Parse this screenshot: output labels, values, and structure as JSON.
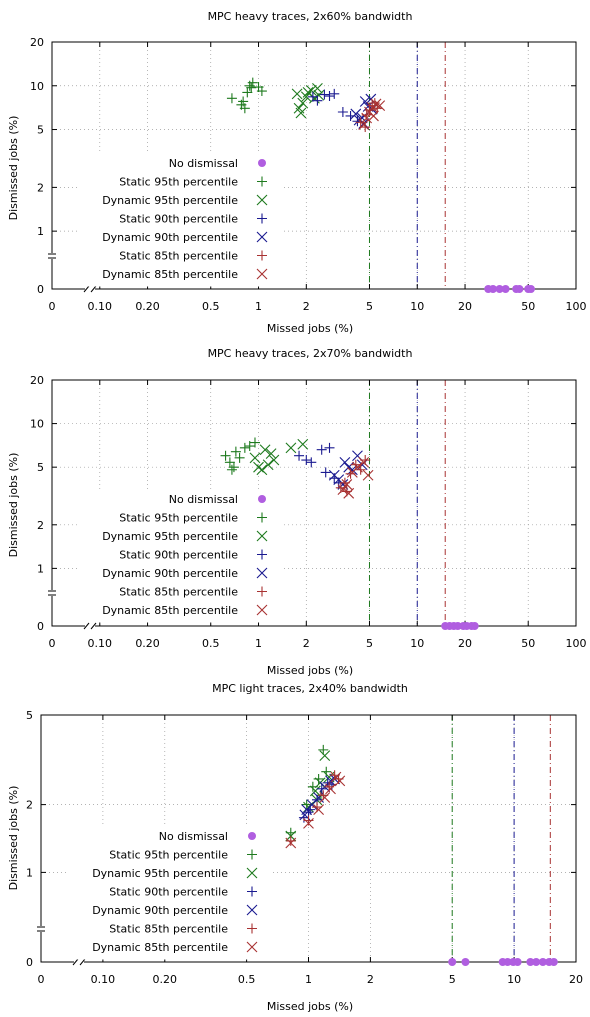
{
  "colors": {
    "no_dismissal": "#b05ee0",
    "p95": "#1e7a1e",
    "p90": "#1a1a90",
    "p85": "#a83232",
    "axis": "#000000",
    "grid": "#9a9a9a"
  },
  "chart_data": [
    {
      "type": "scatter",
      "title": "MPC heavy traces, 2x60% bandwidth",
      "xlabel": "Missed jobs (%)",
      "ylabel": "Dismissed jobs (%)",
      "xscale": "log",
      "yscale": "log",
      "xlim": [
        0.05,
        100
      ],
      "ylim": [
        0.4,
        20
      ],
      "xticks": [
        {
          "v": 0.05,
          "label": "0"
        },
        {
          "v": 0.1,
          "label": "0.10"
        },
        {
          "v": 0.2,
          "label": "0.20"
        },
        {
          "v": 0.5,
          "label": "0.5"
        },
        {
          "v": 1,
          "label": "1"
        },
        {
          "v": 2,
          "label": "2"
        },
        {
          "v": 5,
          "label": "5"
        },
        {
          "v": 10,
          "label": "10"
        },
        {
          "v": 20,
          "label": "20"
        },
        {
          "v": 50,
          "label": "50"
        },
        {
          "v": 100,
          "label": "100"
        }
      ],
      "yticks": [
        {
          "v": 0.4,
          "label": "0"
        },
        {
          "v": 1,
          "label": "1"
        },
        {
          "v": 2,
          "label": "2"
        },
        {
          "v": 5,
          "label": "5"
        },
        {
          "v": 10,
          "label": "10"
        },
        {
          "v": 20,
          "label": "20"
        }
      ],
      "grid": true,
      "legend_position": "left-middle",
      "vlines": [
        {
          "x": 5,
          "color": "p95"
        },
        {
          "x": 10,
          "color": "p90"
        },
        {
          "x": 15,
          "color": "p85"
        }
      ],
      "series": [
        {
          "name": "No dismissal",
          "marker": "circle",
          "color": "no_dismissal",
          "points": [
            [
              28,
              0.4
            ],
            [
              30,
              0.4
            ],
            [
              33,
              0.4
            ],
            [
              36,
              0.4
            ],
            [
              42,
              0.4
            ],
            [
              44,
              0.4
            ],
            [
              50,
              0.4
            ],
            [
              52,
              0.4
            ]
          ]
        },
        {
          "name": "Static 95th percentile",
          "marker": "plus",
          "color": "p95",
          "points": [
            [
              0.68,
              8.2
            ],
            [
              0.78,
              7.4
            ],
            [
              0.8,
              7.8
            ],
            [
              0.82,
              7.0
            ],
            [
              0.85,
              9.0
            ],
            [
              0.88,
              10.0
            ],
            [
              0.9,
              9.7
            ],
            [
              0.92,
              10.5
            ],
            [
              1.0,
              9.8
            ],
            [
              1.05,
              9.2
            ]
          ]
        },
        {
          "name": "Dynamic 95th percentile",
          "marker": "x",
          "color": "p95",
          "points": [
            [
              1.75,
              8.8
            ],
            [
              1.8,
              7.0
            ],
            [
              1.85,
              6.5
            ],
            [
              1.9,
              7.6
            ],
            [
              2.0,
              8.4
            ],
            [
              2.05,
              9.0
            ],
            [
              2.15,
              9.3
            ],
            [
              2.25,
              8.2
            ],
            [
              2.35,
              9.6
            ],
            [
              2.4,
              8.6
            ]
          ]
        },
        {
          "name": "Static 90th percentile",
          "marker": "plus",
          "color": "p90",
          "points": [
            [
              2.2,
              8.4
            ],
            [
              2.35,
              7.9
            ],
            [
              2.6,
              8.7
            ],
            [
              2.8,
              8.5
            ],
            [
              3.0,
              8.8
            ],
            [
              3.4,
              6.6
            ],
            [
              3.8,
              6.2
            ],
            [
              4.2,
              5.7
            ]
          ]
        },
        {
          "name": "Dynamic 90th percentile",
          "marker": "x",
          "color": "p90",
          "points": [
            [
              4.1,
              6.4
            ],
            [
              4.3,
              5.8
            ],
            [
              4.6,
              5.5
            ],
            [
              4.7,
              7.8
            ],
            [
              4.9,
              7.2
            ],
            [
              5.1,
              8.1
            ],
            [
              5.2,
              6.9
            ],
            [
              4.5,
              6.0
            ]
          ]
        },
        {
          "name": "Static 85th percentile",
          "marker": "plus",
          "color": "p85",
          "points": [
            [
              4.4,
              5.6
            ],
            [
              4.8,
              6.3
            ],
            [
              5.0,
              6.8
            ],
            [
              5.2,
              7.3
            ],
            [
              5.4,
              7.6
            ],
            [
              5.6,
              7.0
            ],
            [
              4.7,
              5.2
            ]
          ]
        },
        {
          "name": "Dynamic 85th percentile",
          "marker": "x",
          "color": "p85",
          "points": [
            [
              4.6,
              5.4
            ],
            [
              4.8,
              6.0
            ],
            [
              5.0,
              6.6
            ],
            [
              5.2,
              7.1
            ],
            [
              5.5,
              7.5
            ],
            [
              5.8,
              7.3
            ],
            [
              5.3,
              6.2
            ]
          ]
        }
      ]
    },
    {
      "type": "scatter",
      "title": "MPC heavy traces, 2x70% bandwidth",
      "xlabel": "Missed jobs (%)",
      "ylabel": "Dismissed jobs (%)",
      "xscale": "log",
      "yscale": "log",
      "xlim": [
        0.05,
        100
      ],
      "ylim": [
        0.4,
        20
      ],
      "xticks": [
        {
          "v": 0.05,
          "label": "0"
        },
        {
          "v": 0.1,
          "label": "0.10"
        },
        {
          "v": 0.2,
          "label": "0.20"
        },
        {
          "v": 0.5,
          "label": "0.5"
        },
        {
          "v": 1,
          "label": "1"
        },
        {
          "v": 2,
          "label": "2"
        },
        {
          "v": 5,
          "label": "5"
        },
        {
          "v": 10,
          "label": "10"
        },
        {
          "v": 20,
          "label": "20"
        },
        {
          "v": 50,
          "label": "50"
        },
        {
          "v": 100,
          "label": "100"
        }
      ],
      "yticks": [
        {
          "v": 0.4,
          "label": "0"
        },
        {
          "v": 1,
          "label": "1"
        },
        {
          "v": 2,
          "label": "2"
        },
        {
          "v": 5,
          "label": "5"
        },
        {
          "v": 10,
          "label": "10"
        },
        {
          "v": 20,
          "label": "20"
        }
      ],
      "grid": true,
      "legend_position": "left-middle",
      "vlines": [
        {
          "x": 5,
          "color": "p95"
        },
        {
          "x": 10,
          "color": "p90"
        },
        {
          "x": 15,
          "color": "p85"
        }
      ],
      "series": [
        {
          "name": "No dismissal",
          "marker": "circle",
          "color": "no_dismissal",
          "points": [
            [
              15,
              0.4
            ],
            [
              16,
              0.4
            ],
            [
              17,
              0.4
            ],
            [
              18,
              0.4
            ],
            [
              19.5,
              0.4
            ],
            [
              20.5,
              0.4
            ],
            [
              22,
              0.4
            ],
            [
              23,
              0.4
            ]
          ]
        },
        {
          "name": "Static 95th percentile",
          "marker": "plus",
          "color": "p95",
          "points": [
            [
              0.62,
              6.0
            ],
            [
              0.66,
              5.4
            ],
            [
              0.68,
              4.8
            ],
            [
              0.7,
              5.0
            ],
            [
              0.72,
              6.4
            ],
            [
              0.76,
              5.8
            ],
            [
              0.82,
              6.8
            ],
            [
              0.88,
              7.0
            ],
            [
              0.95,
              7.4
            ]
          ]
        },
        {
          "name": "Dynamic 95th percentile",
          "marker": "x",
          "color": "p95",
          "points": [
            [
              0.95,
              5.8
            ],
            [
              1.0,
              5.0
            ],
            [
              1.05,
              4.8
            ],
            [
              1.1,
              6.6
            ],
            [
              1.15,
              5.2
            ],
            [
              1.2,
              6.2
            ],
            [
              1.25,
              5.6
            ],
            [
              1.6,
              6.8
            ],
            [
              1.9,
              7.2
            ]
          ]
        },
        {
          "name": "Static 90th percentile",
          "marker": "plus",
          "color": "p90",
          "points": [
            [
              1.8,
              6.0
            ],
            [
              2.0,
              5.6
            ],
            [
              2.15,
              5.4
            ],
            [
              2.5,
              6.6
            ],
            [
              2.65,
              4.6
            ],
            [
              2.8,
              6.8
            ],
            [
              3.0,
              4.2
            ],
            [
              3.2,
              3.9
            ]
          ]
        },
        {
          "name": "Dynamic 90th percentile",
          "marker": "x",
          "color": "p90",
          "points": [
            [
              3.0,
              4.4
            ],
            [
              3.2,
              4.1
            ],
            [
              3.4,
              3.8
            ],
            [
              3.5,
              5.4
            ],
            [
              3.7,
              5.0
            ],
            [
              3.9,
              4.8
            ],
            [
              4.2,
              6.0
            ],
            [
              4.5,
              5.2
            ]
          ]
        },
        {
          "name": "Static 85th percentile",
          "marker": "plus",
          "color": "p85",
          "points": [
            [
              3.3,
              3.6
            ],
            [
              3.5,
              3.9
            ],
            [
              3.8,
              4.5
            ],
            [
              4.1,
              5.2
            ],
            [
              4.4,
              4.8
            ],
            [
              4.7,
              5.6
            ],
            [
              3.6,
              3.4
            ]
          ]
        },
        {
          "name": "Dynamic 85th percentile",
          "marker": "x",
          "color": "p85",
          "points": [
            [
              3.4,
              3.5
            ],
            [
              3.6,
              3.8
            ],
            [
              3.9,
              4.6
            ],
            [
              4.2,
              5.0
            ],
            [
              4.6,
              5.4
            ],
            [
              4.9,
              4.4
            ],
            [
              3.7,
              3.3
            ]
          ]
        }
      ]
    },
    {
      "type": "scatter",
      "title": "MPC light traces, 2x40% bandwidth",
      "xlabel": "Missed jobs (%)",
      "ylabel": "Dismissed jobs (%)",
      "xscale": "log",
      "yscale": "log",
      "xlim": [
        0.05,
        20
      ],
      "ylim": [
        0.4,
        5
      ],
      "xticks": [
        {
          "v": 0.05,
          "label": "0"
        },
        {
          "v": 0.1,
          "label": "0.10"
        },
        {
          "v": 0.2,
          "label": "0.20"
        },
        {
          "v": 0.5,
          "label": "0.5"
        },
        {
          "v": 1,
          "label": "1"
        },
        {
          "v": 2,
          "label": "2"
        },
        {
          "v": 5,
          "label": "5"
        },
        {
          "v": 10,
          "label": "10"
        },
        {
          "v": 20,
          "label": "20"
        }
      ],
      "yticks": [
        {
          "v": 0.4,
          "label": "0"
        },
        {
          "v": 1,
          "label": "1"
        },
        {
          "v": 2,
          "label": "2"
        },
        {
          "v": 5,
          "label": "5"
        }
      ],
      "grid": true,
      "legend_position": "left-middle",
      "vlines": [
        {
          "x": 5,
          "color": "p95"
        },
        {
          "x": 10,
          "color": "p90"
        },
        {
          "x": 15,
          "color": "p85"
        }
      ],
      "series": [
        {
          "name": "No dismissal",
          "marker": "circle",
          "color": "no_dismissal",
          "points": [
            [
              5.0,
              0.4
            ],
            [
              5.8,
              0.4
            ],
            [
              8.8,
              0.4
            ],
            [
              9.3,
              0.4
            ],
            [
              9.9,
              0.4
            ],
            [
              10.4,
              0.4
            ],
            [
              12.0,
              0.4
            ],
            [
              12.8,
              0.4
            ],
            [
              13.8,
              0.4
            ],
            [
              14.8,
              0.4
            ],
            [
              15.6,
              0.4
            ]
          ]
        },
        {
          "name": "Static 95th percentile",
          "marker": "plus",
          "color": "p95",
          "points": [
            [
              0.82,
              1.5
            ],
            [
              0.98,
              2.0
            ],
            [
              1.05,
              2.4
            ],
            [
              1.12,
              2.6
            ],
            [
              1.18,
              3.5
            ],
            [
              1.22,
              2.8
            ],
            [
              1.15,
              2.2
            ]
          ]
        },
        {
          "name": "Dynamic 95th percentile",
          "marker": "x",
          "color": "p95",
          "points": [
            [
              0.82,
              1.45
            ],
            [
              1.0,
              1.95
            ],
            [
              1.08,
              2.3
            ],
            [
              1.14,
              2.5
            ],
            [
              1.2,
              3.3
            ],
            [
              1.26,
              2.65
            ],
            [
              1.1,
              2.1
            ]
          ]
        },
        {
          "name": "Static 90th percentile",
          "marker": "plus",
          "color": "p90",
          "points": [
            [
              0.95,
              1.75
            ],
            [
              1.02,
              1.9
            ],
            [
              1.1,
              2.1
            ],
            [
              1.16,
              2.35
            ],
            [
              1.24,
              2.5
            ],
            [
              1.3,
              2.45
            ],
            [
              1.0,
              1.85
            ]
          ]
        },
        {
          "name": "Dynamic 90th percentile",
          "marker": "x",
          "color": "p90",
          "points": [
            [
              0.96,
              1.8
            ],
            [
              1.04,
              2.0
            ],
            [
              1.12,
              2.15
            ],
            [
              1.2,
              2.4
            ],
            [
              1.28,
              2.55
            ],
            [
              1.34,
              2.6
            ],
            [
              0.98,
              1.9
            ]
          ]
        },
        {
          "name": "Static 85th percentile",
          "marker": "plus",
          "color": "p85",
          "points": [
            [
              0.82,
              1.38
            ],
            [
              1.0,
              1.7
            ],
            [
              1.1,
              1.95
            ],
            [
              1.18,
              2.2
            ],
            [
              1.26,
              2.4
            ],
            [
              1.34,
              2.7
            ],
            [
              1.4,
              2.6
            ]
          ]
        },
        {
          "name": "Dynamic 85th percentile",
          "marker": "x",
          "color": "p85",
          "points": [
            [
              0.82,
              1.35
            ],
            [
              1.0,
              1.65
            ],
            [
              1.12,
              1.9
            ],
            [
              1.2,
              2.15
            ],
            [
              1.28,
              2.35
            ],
            [
              1.36,
              2.65
            ],
            [
              1.42,
              2.55
            ]
          ]
        }
      ]
    }
  ]
}
